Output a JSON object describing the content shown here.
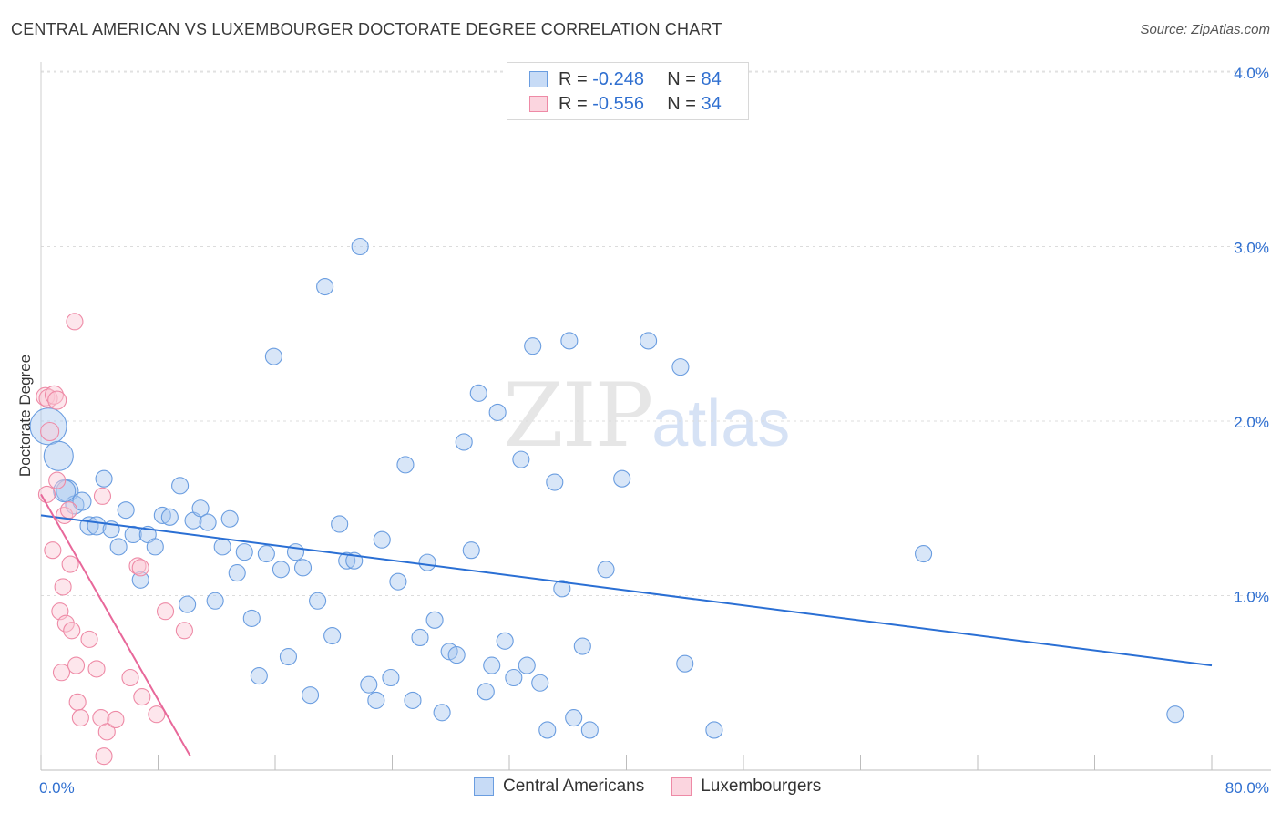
{
  "header": {
    "title": "CENTRAL AMERICAN VS LUXEMBOURGER DOCTORATE DEGREE CORRELATION CHART",
    "source": "Source: ZipAtlas.com"
  },
  "watermark": {
    "zip": "ZIP",
    "atlas": "atlas"
  },
  "legend": {
    "rows": [
      {
        "r_label": "R =",
        "r_value": "-0.248",
        "n_label": "N =",
        "n_value": "84",
        "color": "#a9c8f0"
      },
      {
        "r_label": "R =",
        "r_value": "-0.556",
        "n_label": "N =",
        "n_value": "34",
        "color": "#f7b8c9"
      }
    ]
  },
  "bottom_legend": {
    "series": [
      {
        "name": "Central Americans",
        "color": "#a9c8f0",
        "border": "#6a9de0"
      },
      {
        "name": "Luxembourgers",
        "color": "#fbc7d4",
        "border": "#ee8aa6"
      }
    ]
  },
  "chart_data": {
    "type": "scatter",
    "title": "CENTRAL AMERICAN VS LUXEMBOURGER DOCTORATE DEGREE CORRELATION CHART",
    "xlabel": "",
    "ylabel": "Doctorate Degree",
    "xlim": [
      0,
      80
    ],
    "ylim": [
      0,
      4.2
    ],
    "x_tick_labels": [
      "0.0%",
      "80.0%"
    ],
    "y_ticks": [
      1.0,
      2.0,
      3.0,
      4.0
    ],
    "y_tick_labels": [
      "1.0%",
      "2.0%",
      "3.0%",
      "4.0%"
    ],
    "grid": true,
    "series": [
      {
        "name": "Central Americans",
        "color": "#a9c8f0",
        "edge": "#6a9de0",
        "trend": {
          "x": [
            0,
            80
          ],
          "y": [
            1.46,
            0.6
          ],
          "color": "#2a6fd4"
        },
        "points": [
          [
            0.5,
            1.97,
            20
          ],
          [
            1.2,
            1.8,
            16
          ],
          [
            1.8,
            1.6,
            12
          ],
          [
            2.3,
            1.52,
            10
          ],
          [
            2.8,
            1.54,
            10
          ],
          [
            3.3,
            1.4,
            10
          ],
          [
            3.8,
            1.4,
            10
          ],
          [
            4.3,
            1.67,
            9
          ],
          [
            4.8,
            1.38,
            9
          ],
          [
            5.3,
            1.28,
            9
          ],
          [
            5.8,
            1.49,
            9
          ],
          [
            6.3,
            1.35,
            9
          ],
          [
            6.8,
            1.09,
            9
          ],
          [
            7.3,
            1.35,
            9
          ],
          [
            7.8,
            1.28,
            9
          ],
          [
            8.3,
            1.46,
            9
          ],
          [
            8.8,
            1.45,
            9
          ],
          [
            9.5,
            1.63,
            9
          ],
          [
            10.0,
            0.95,
            9
          ],
          [
            10.4,
            1.43,
            9
          ],
          [
            10.9,
            1.5,
            9
          ],
          [
            11.4,
            1.42,
            9
          ],
          [
            11.9,
            0.97,
            9
          ],
          [
            12.4,
            1.28,
            9
          ],
          [
            12.9,
            1.44,
            9
          ],
          [
            13.4,
            1.13,
            9
          ],
          [
            13.9,
            1.25,
            9
          ],
          [
            14.4,
            0.87,
            9
          ],
          [
            14.9,
            0.54,
            9
          ],
          [
            15.4,
            1.24,
            9
          ],
          [
            15.9,
            2.37,
            9
          ],
          [
            16.4,
            1.15,
            9
          ],
          [
            16.9,
            0.65,
            9
          ],
          [
            17.4,
            1.25,
            9
          ],
          [
            17.9,
            1.16,
            9
          ],
          [
            18.4,
            0.43,
            9
          ],
          [
            18.9,
            0.97,
            9
          ],
          [
            19.4,
            2.77,
            9
          ],
          [
            19.9,
            0.77,
            9
          ],
          [
            20.4,
            1.41,
            9
          ],
          [
            20.9,
            1.2,
            9
          ],
          [
            21.4,
            1.2,
            9
          ],
          [
            21.8,
            3.0,
            9
          ],
          [
            22.4,
            0.49,
            9
          ],
          [
            22.9,
            0.4,
            9
          ],
          [
            23.3,
            1.32,
            9
          ],
          [
            23.9,
            0.53,
            9
          ],
          [
            24.4,
            1.08,
            9
          ],
          [
            24.9,
            1.75,
            9
          ],
          [
            25.4,
            0.4,
            9
          ],
          [
            25.9,
            0.76,
            9
          ],
          [
            26.4,
            1.19,
            9
          ],
          [
            26.9,
            0.86,
            9
          ],
          [
            27.4,
            0.33,
            9
          ],
          [
            27.9,
            0.68,
            9
          ],
          [
            28.4,
            0.66,
            9
          ],
          [
            28.9,
            1.88,
            9
          ],
          [
            29.4,
            1.26,
            9
          ],
          [
            29.9,
            2.16,
            9
          ],
          [
            30.4,
            0.45,
            9
          ],
          [
            30.8,
            0.6,
            9
          ],
          [
            31.2,
            2.05,
            9
          ],
          [
            31.7,
            0.74,
            9
          ],
          [
            32.3,
            0.53,
            9
          ],
          [
            32.8,
            1.78,
            9
          ],
          [
            33.2,
            0.6,
            9
          ],
          [
            33.6,
            2.43,
            9
          ],
          [
            34.1,
            0.5,
            9
          ],
          [
            34.6,
            0.23,
            9
          ],
          [
            35.1,
            1.65,
            9
          ],
          [
            35.6,
            1.04,
            9
          ],
          [
            36.1,
            2.46,
            9
          ],
          [
            36.4,
            0.3,
            9
          ],
          [
            37.0,
            0.71,
            9
          ],
          [
            37.5,
            0.23,
            9
          ],
          [
            38.6,
            1.15,
            9
          ],
          [
            39.7,
            1.67,
            9
          ],
          [
            41.5,
            2.46,
            9
          ],
          [
            43.7,
            2.31,
            9
          ],
          [
            44.0,
            0.61,
            9
          ],
          [
            46.0,
            0.23,
            9
          ],
          [
            60.3,
            1.24,
            9
          ],
          [
            77.5,
            0.32,
            9
          ],
          [
            1.6,
            1.6,
            12
          ]
        ]
      },
      {
        "name": "Luxembourgers",
        "color": "#fbc7d4",
        "edge": "#ee8aa6",
        "trend": {
          "x": [
            0,
            10.2
          ],
          "y": [
            1.58,
            0.08
          ],
          "color": "#e8689a"
        },
        "points": [
          [
            0.3,
            2.14,
            10
          ],
          [
            0.5,
            2.13,
            10
          ],
          [
            0.6,
            1.94,
            10
          ],
          [
            0.9,
            2.15,
            10
          ],
          [
            1.1,
            2.12,
            10
          ],
          [
            0.4,
            1.58,
            9
          ],
          [
            0.8,
            1.26,
            9
          ],
          [
            1.1,
            1.66,
            9
          ],
          [
            1.3,
            0.91,
            9
          ],
          [
            1.5,
            1.05,
            9
          ],
          [
            1.7,
            0.84,
            9
          ],
          [
            1.6,
            1.46,
            9
          ],
          [
            1.9,
            1.49,
            9
          ],
          [
            2.0,
            1.18,
            9
          ],
          [
            2.1,
            0.8,
            9
          ],
          [
            2.3,
            2.57,
            9
          ],
          [
            2.4,
            0.6,
            9
          ],
          [
            2.5,
            0.39,
            9
          ],
          [
            2.7,
            0.3,
            9
          ],
          [
            3.3,
            0.75,
            9
          ],
          [
            3.8,
            0.58,
            9
          ],
          [
            4.1,
            0.3,
            9
          ],
          [
            4.3,
            0.08,
            9
          ],
          [
            4.5,
            0.22,
            9
          ],
          [
            4.2,
            1.57,
            9
          ],
          [
            5.1,
            0.29,
            9
          ],
          [
            6.1,
            0.53,
            9
          ],
          [
            6.6,
            1.17,
            9
          ],
          [
            6.8,
            1.16,
            9
          ],
          [
            6.9,
            0.42,
            9
          ],
          [
            7.9,
            0.32,
            9
          ],
          [
            8.5,
            0.91,
            9
          ],
          [
            9.8,
            0.8,
            9
          ],
          [
            1.4,
            0.56,
            9
          ]
        ]
      }
    ]
  }
}
